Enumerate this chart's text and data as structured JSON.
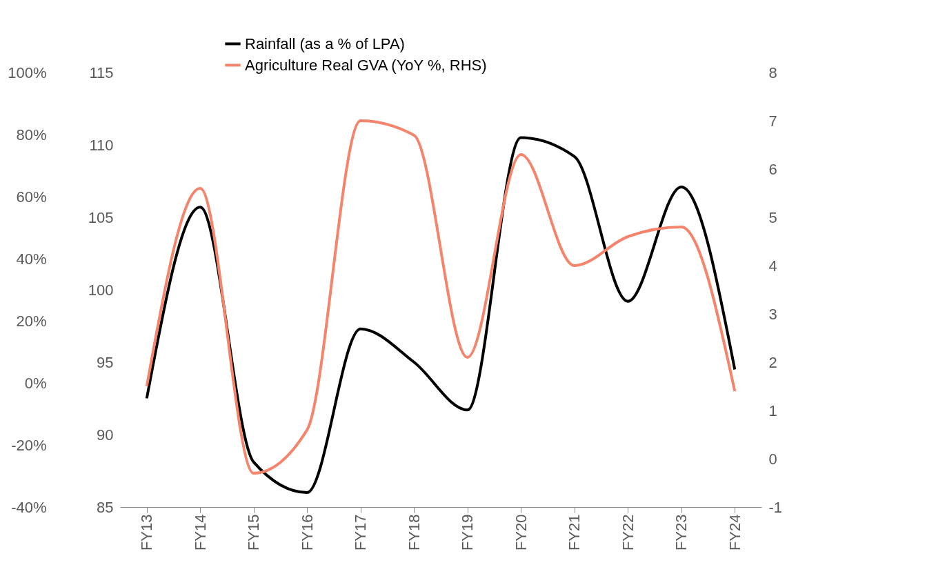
{
  "chart_data": {
    "type": "line",
    "categories": [
      "FY13",
      "FY14",
      "FY15",
      "FY16",
      "FY17",
      "FY18",
      "FY19",
      "FY20",
      "FY21",
      "FY22",
      "FY23",
      "FY24"
    ],
    "series": [
      {
        "name": "Rainfall (as a % of LPA)",
        "color": "#000000",
        "values": [
          92.5,
          105.7,
          88.1,
          86.0,
          97.3,
          95.0,
          91.7,
          110.5,
          109.2,
          99.2,
          107.1,
          94.5
        ]
      },
      {
        "name": "Agriculture Real GVA (YoY %, RHS)",
        "color": "#f4846c",
        "axis": "y2",
        "values": [
          1.5,
          5.6,
          -0.3,
          0.6,
          7.0,
          6.7,
          2.1,
          6.3,
          4.0,
          4.6,
          4.8,
          1.4
        ]
      }
    ],
    "ylim": [
      85,
      115
    ],
    "yticks": [
      85,
      90,
      95,
      100,
      105,
      110,
      115
    ],
    "y2lim": [
      -1,
      8
    ],
    "y2ticks": [
      -1,
      0,
      1,
      2,
      3,
      4,
      5,
      6,
      7,
      8
    ],
    "y3lim": [
      -40,
      100
    ],
    "y3ticks": [
      {
        "value": -40,
        "label": "-40%"
      },
      {
        "value": -20,
        "label": "-20%"
      },
      {
        "value": 0,
        "label": "0%"
      },
      {
        "value": 20,
        "label": "20%"
      },
      {
        "value": 40,
        "label": "40%"
      },
      {
        "value": 60,
        "label": "60%"
      },
      {
        "value": 80,
        "label": "80%"
      },
      {
        "value": 100,
        "label": "100%"
      }
    ],
    "grid": false,
    "legend": "top",
    "marker": "none",
    "line_style": "solid"
  }
}
